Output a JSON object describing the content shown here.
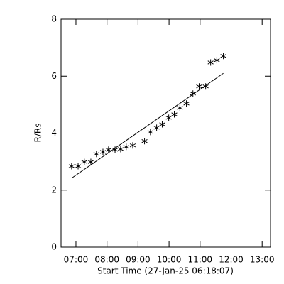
{
  "chart_data": {
    "type": "scatter",
    "x_label": "Start Time (27-Jan-25 06:18:07)",
    "y_label": "R/Rs",
    "x": [
      6.86,
      7.07,
      7.27,
      7.48,
      7.66,
      7.87,
      8.05,
      8.26,
      8.44,
      8.62,
      8.83,
      9.21,
      9.4,
      9.6,
      9.78,
      9.99,
      10.17,
      10.35,
      10.56,
      10.77,
      10.97,
      11.18,
      11.34,
      11.54,
      11.75
    ],
    "values": [
      2.84,
      2.84,
      2.99,
      2.99,
      3.27,
      3.34,
      3.42,
      3.42,
      3.44,
      3.52,
      3.57,
      3.72,
      4.04,
      4.19,
      4.31,
      4.54,
      4.66,
      4.89,
      5.04,
      5.39,
      5.64,
      5.64,
      6.48,
      6.56,
      6.71
    ],
    "fit_x": [
      6.86,
      11.75
    ],
    "fit_values": [
      2.42,
      6.1
    ],
    "color": "#000000",
    "xlim": [
      6.52,
      13.27
    ],
    "xticks": [
      {
        "value": 7,
        "label": "07:00"
      },
      {
        "value": 8,
        "label": "08:00"
      },
      {
        "value": 9,
        "label": "09:00"
      },
      {
        "value": 10,
        "label": "10:00"
      },
      {
        "value": 11,
        "label": "11:00"
      },
      {
        "value": 12,
        "label": "12:00"
      },
      {
        "value": 13,
        "label": "13:00"
      }
    ],
    "ylim": [
      0,
      8
    ],
    "yticks": [
      0,
      2,
      4,
      6,
      8
    ]
  }
}
